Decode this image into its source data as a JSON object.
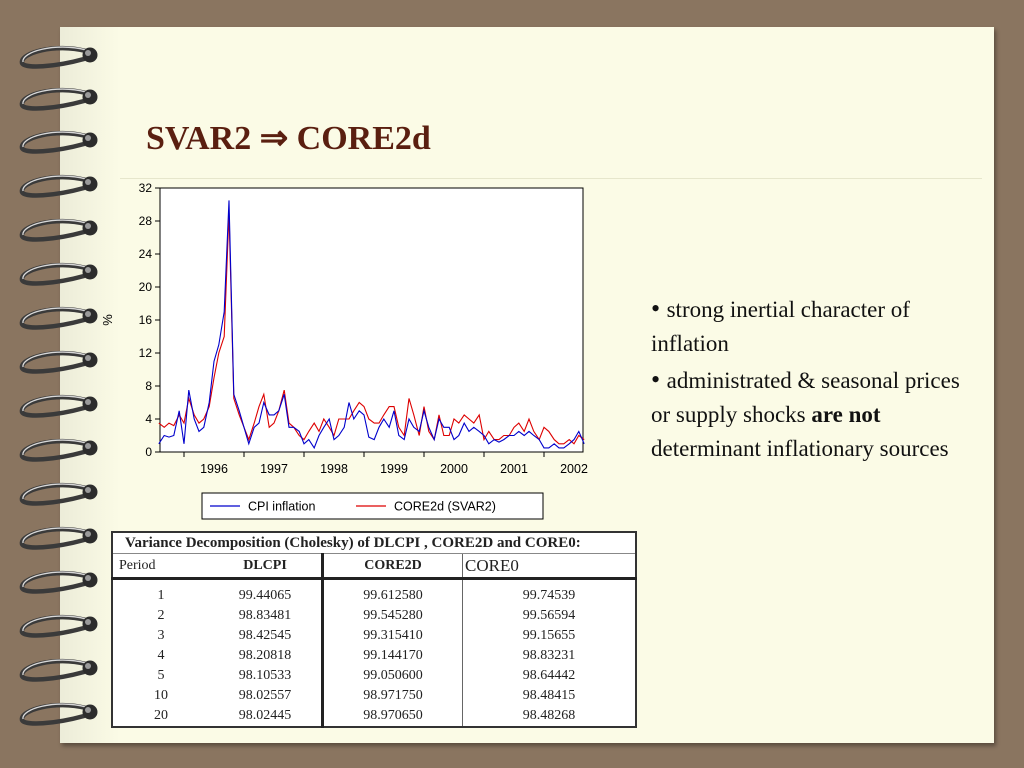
{
  "slide": {
    "title": "SVAR2 ⇒ CORE2d",
    "bullets": [
      {
        "pre": "strong inertial character of inflation",
        "bold": "",
        "post": ""
      },
      {
        "pre": "administrated & seasonal prices or supply shocks ",
        "bold": "are not",
        "post": " determinant inflationary sources"
      }
    ]
  },
  "chart_data": {
    "type": "line",
    "title": "",
    "xlabel": "",
    "ylabel": "%",
    "ylim": [
      0,
      32
    ],
    "yticks": [
      0,
      4,
      8,
      12,
      16,
      20,
      24,
      28,
      32
    ],
    "xlim": [
      1995.6,
      2002.65
    ],
    "xticks": [
      1996,
      1997,
      1998,
      1999,
      2000,
      2001,
      2002
    ],
    "legend_position": "bottom",
    "grid": false,
    "colors": {
      "CPI inflation": "#0000cc",
      "CORE2d (SVAR2)": "#dd0000"
    },
    "x": [
      1995.58,
      1995.67,
      1995.75,
      1995.83,
      1995.92,
      1996.0,
      1996.08,
      1996.17,
      1996.25,
      1996.33,
      1996.42,
      1996.5,
      1996.58,
      1996.67,
      1996.75,
      1996.83,
      1996.92,
      1997.0,
      1997.08,
      1997.17,
      1997.25,
      1997.33,
      1997.42,
      1997.5,
      1997.58,
      1997.67,
      1997.75,
      1997.83,
      1997.92,
      1998.0,
      1998.08,
      1998.17,
      1998.25,
      1998.33,
      1998.42,
      1998.5,
      1998.58,
      1998.67,
      1998.75,
      1998.83,
      1998.92,
      1999.0,
      1999.08,
      1999.17,
      1999.25,
      1999.33,
      1999.42,
      1999.5,
      1999.58,
      1999.67,
      1999.75,
      1999.83,
      1999.92,
      2000.0,
      2000.08,
      2000.17,
      2000.25,
      2000.33,
      2000.42,
      2000.5,
      2000.58,
      2000.67,
      2000.75,
      2000.83,
      2000.92,
      2001.0,
      2001.08,
      2001.17,
      2001.25,
      2001.33,
      2001.42,
      2001.5,
      2001.58,
      2001.67,
      2001.75,
      2001.83,
      2001.92,
      2002.0,
      2002.08,
      2002.17,
      2002.25,
      2002.33,
      2002.42,
      2002.5,
      2002.58,
      2002.67
    ],
    "series": [
      {
        "name": "CPI inflation",
        "values": [
          1.0,
          2.0,
          1.8,
          2.0,
          5.0,
          1.0,
          7.5,
          4.0,
          2.5,
          3.0,
          6.0,
          11.0,
          13.0,
          17.0,
          30.5,
          7.0,
          5.0,
          3.0,
          1.0,
          3.0,
          3.5,
          6.0,
          4.5,
          4.5,
          5.0,
          7.0,
          3.0,
          3.0,
          2.5,
          1.0,
          1.5,
          0.5,
          2.0,
          3.0,
          4.0,
          1.5,
          2.0,
          3.0,
          6.0,
          4.0,
          5.0,
          4.5,
          1.8,
          1.5,
          3.0,
          4.0,
          3.0,
          5.0,
          2.0,
          1.5,
          4.0,
          3.0,
          2.5,
          5.0,
          3.0,
          1.5,
          4.0,
          3.0,
          3.0,
          1.5,
          2.0,
          3.5,
          2.5,
          3.0,
          2.5,
          2.0,
          1.0,
          1.5,
          1.2,
          1.5,
          2.0,
          2.0,
          2.5,
          2.0,
          2.5,
          2.0,
          1.5,
          0.5,
          0.5,
          1.0,
          0.5,
          0.5,
          1.0,
          1.5,
          2.5,
          1.0
        ]
      },
      {
        "name": "CORE2d (SVAR2)",
        "values": [
          3.5,
          3.0,
          3.5,
          3.2,
          4.5,
          3.5,
          6.5,
          4.5,
          3.5,
          4.0,
          5.5,
          9.0,
          12.0,
          14.0,
          29.0,
          6.5,
          4.5,
          3.0,
          1.5,
          3.5,
          5.5,
          7.0,
          3.0,
          3.5,
          5.0,
          7.5,
          3.5,
          3.0,
          2.0,
          1.5,
          2.5,
          3.5,
          2.5,
          4.0,
          3.0,
          2.0,
          4.0,
          4.0,
          4.0,
          5.0,
          6.0,
          5.5,
          4.0,
          3.5,
          3.5,
          4.5,
          5.5,
          5.5,
          3.0,
          2.0,
          6.5,
          4.5,
          2.0,
          5.5,
          2.5,
          1.5,
          4.5,
          2.0,
          2.0,
          4.0,
          3.5,
          4.5,
          4.0,
          3.5,
          4.5,
          1.5,
          2.5,
          1.5,
          1.5,
          2.0,
          2.0,
          3.0,
          3.5,
          2.5,
          4.0,
          2.5,
          1.5,
          3.0,
          2.5,
          1.5,
          1.0,
          1.0,
          1.5,
          1.0,
          2.0,
          1.5
        ]
      }
    ]
  },
  "table": {
    "caption": "Variance Decomposition (Cholesky) of DLCPI , CORE2D and CORE0:",
    "headers": [
      "Period",
      "DLCPI",
      "CORE2D",
      "CORE0"
    ],
    "rows": [
      [
        "1",
        "99.44065",
        "99.612580",
        "99.74539"
      ],
      [
        "2",
        "98.83481",
        "99.545280",
        "99.56594"
      ],
      [
        "3",
        "98.42545",
        "99.315410",
        "99.15655"
      ],
      [
        "4",
        "98.20818",
        "99.144170",
        "98.83231"
      ],
      [
        "5",
        "98.10533",
        "99.050600",
        "98.64442"
      ],
      [
        "10",
        "98.02557",
        "98.971750",
        "98.48415"
      ],
      [
        "20",
        "98.02445",
        "98.970650",
        "98.48268"
      ]
    ]
  }
}
